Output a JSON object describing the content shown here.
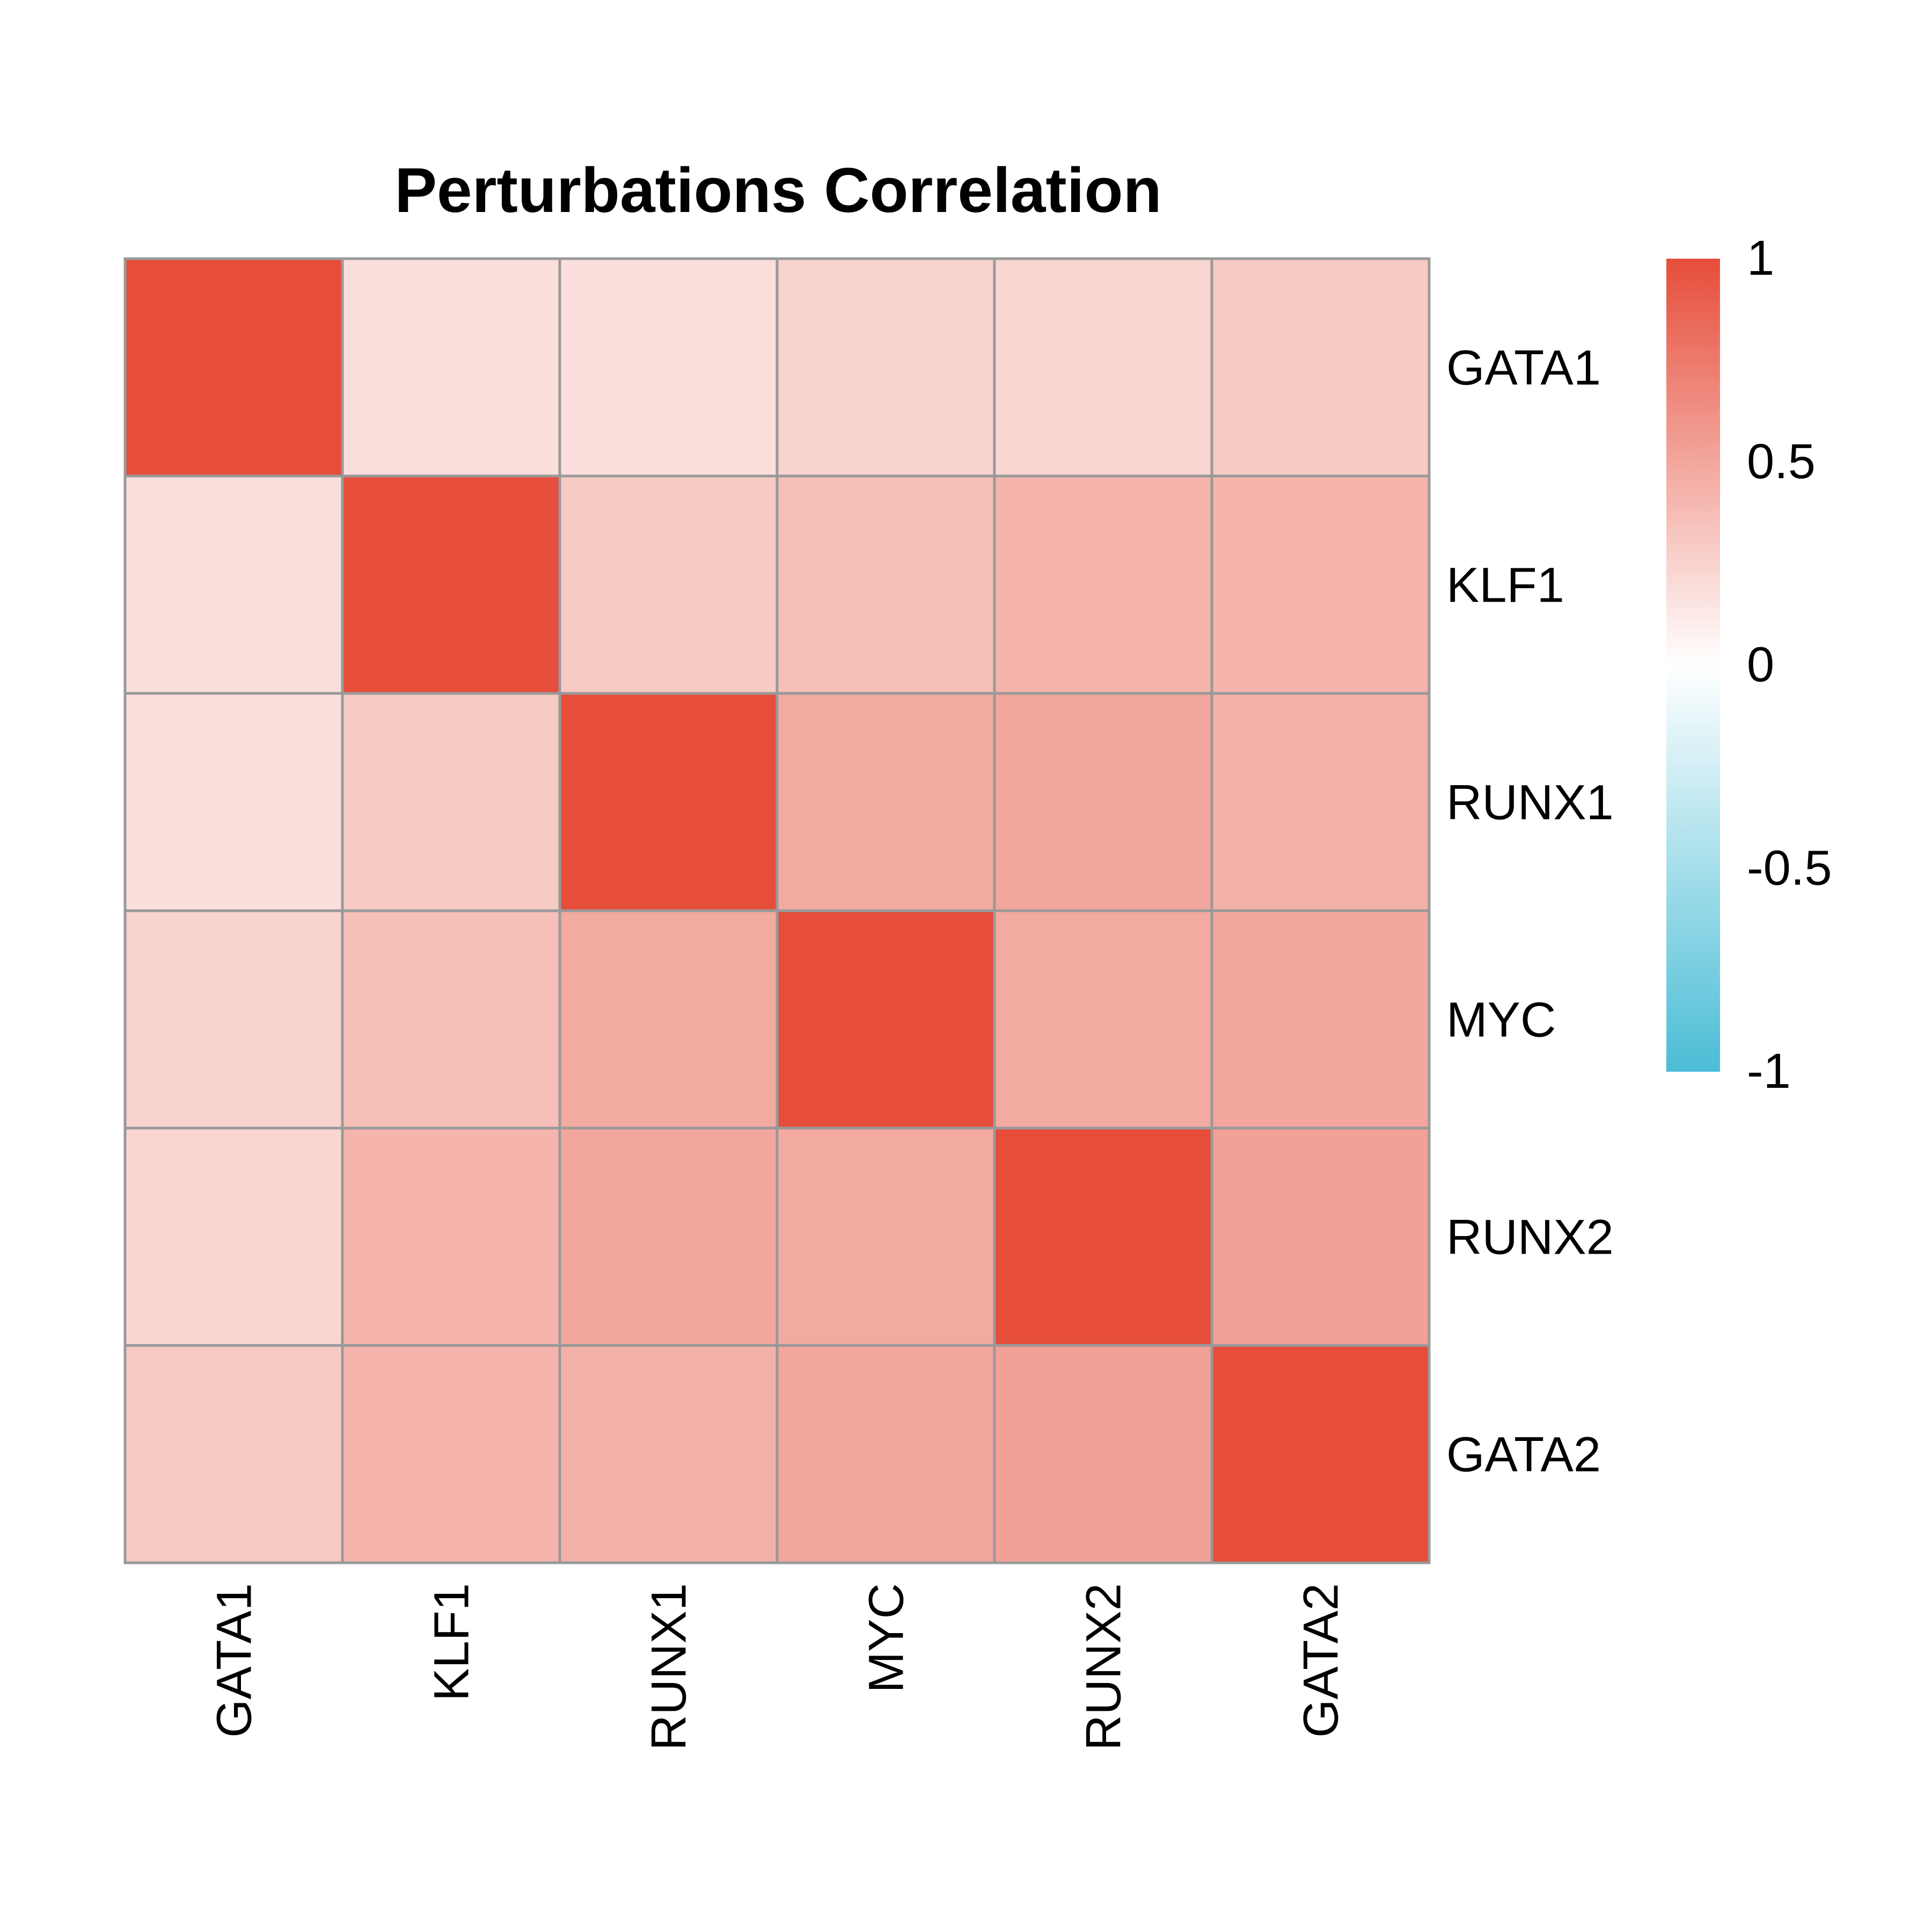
{
  "chart_data": {
    "type": "heatmap",
    "title": "Perturbations Correlation",
    "rows": [
      "GATA1",
      "KLF1",
      "RUNX1",
      "MYC",
      "RUNX2",
      "GATA2"
    ],
    "columns": [
      "GATA1",
      "KLF1",
      "RUNX1",
      "MYC",
      "RUNX2",
      "GATA2"
    ],
    "values": [
      [
        1.0,
        0.18,
        0.18,
        0.25,
        0.23,
        0.3
      ],
      [
        0.18,
        1.0,
        0.3,
        0.36,
        0.42,
        0.42
      ],
      [
        0.18,
        0.3,
        1.0,
        0.48,
        0.5,
        0.44
      ],
      [
        0.25,
        0.36,
        0.48,
        1.0,
        0.48,
        0.5
      ],
      [
        0.23,
        0.42,
        0.5,
        0.48,
        1.0,
        0.53
      ],
      [
        0.3,
        0.42,
        0.44,
        0.5,
        0.53,
        1.0
      ]
    ],
    "color_scale": {
      "min": -1,
      "max": 1,
      "low_color": "#4bbdd6",
      "mid_color": "#ffffff",
      "high_color": "#e64d3a"
    },
    "legend": {
      "position": "right",
      "ticks": [
        "1",
        "0.5",
        "0",
        "-0.5",
        "-1"
      ]
    },
    "cell_border_color": "#999999"
  }
}
